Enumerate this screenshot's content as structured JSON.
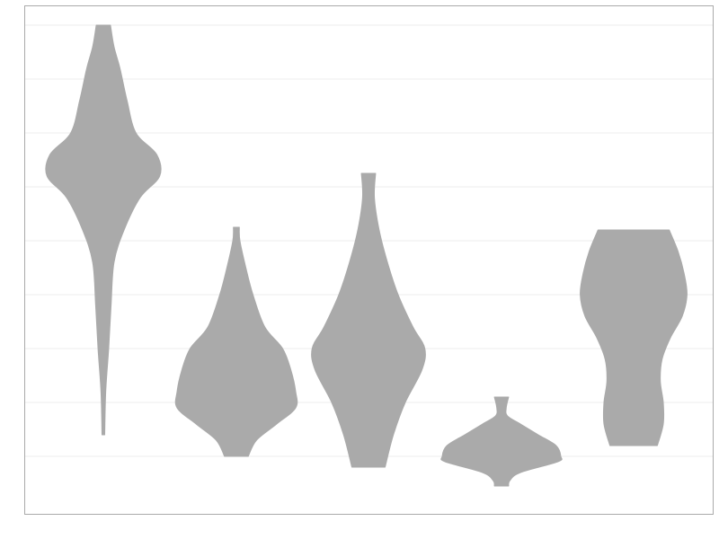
{
  "colors": {
    "background": "#ffffff",
    "violin_fill": "#aaaaaa",
    "gridline": "#eeeeee",
    "frame": "#aaaaaa"
  },
  "chart_data": {
    "type": "violin",
    "title": "",
    "xlabel": "",
    "ylabel": "",
    "grid": true,
    "ylim": [
      0,
      9.4
    ],
    "y_grid_values": [
      1,
      2,
      3,
      4,
      5,
      6,
      7,
      8,
      9
    ],
    "categories": [
      "",
      "",
      "",
      "",
      ""
    ],
    "series": [
      {
        "min": 1.4,
        "max": 9.0,
        "profile": [
          [
            1.4,
            0.0
          ],
          [
            2.2,
            0.04
          ],
          [
            3.0,
            0.09
          ],
          [
            3.8,
            0.13
          ],
          [
            4.6,
            0.18
          ],
          [
            5.2,
            0.35
          ],
          [
            5.8,
            0.62
          ],
          [
            6.2,
            0.95
          ],
          [
            6.6,
            0.9
          ],
          [
            7.0,
            0.55
          ],
          [
            7.6,
            0.4
          ],
          [
            8.2,
            0.28
          ],
          [
            8.6,
            0.18
          ],
          [
            9.0,
            0.12
          ]
        ]
      },
      {
        "min": 1.0,
        "max": 5.25,
        "profile": [
          [
            1.0,
            0.2
          ],
          [
            1.3,
            0.34
          ],
          [
            1.6,
            0.68
          ],
          [
            1.9,
            1.0
          ],
          [
            2.2,
            1.0
          ],
          [
            2.6,
            0.92
          ],
          [
            3.0,
            0.78
          ],
          [
            3.4,
            0.48
          ],
          [
            4.0,
            0.28
          ],
          [
            4.5,
            0.16
          ],
          [
            5.0,
            0.06
          ],
          [
            5.25,
            0.05
          ]
        ]
      },
      {
        "min": 0.8,
        "max": 6.25,
        "profile": [
          [
            0.8,
            0.28
          ],
          [
            1.4,
            0.42
          ],
          [
            2.0,
            0.62
          ],
          [
            2.6,
            0.9
          ],
          [
            3.0,
            0.95
          ],
          [
            3.4,
            0.75
          ],
          [
            4.0,
            0.5
          ],
          [
            4.6,
            0.32
          ],
          [
            5.2,
            0.18
          ],
          [
            5.8,
            0.1
          ],
          [
            6.25,
            0.12
          ]
        ]
      },
      {
        "min": 0.45,
        "max": 2.1,
        "profile": [
          [
            0.45,
            0.12
          ],
          [
            0.55,
            0.14
          ],
          [
            0.7,
            0.32
          ],
          [
            0.9,
            0.95
          ],
          [
            1.0,
            1.0
          ],
          [
            1.2,
            0.92
          ],
          [
            1.4,
            0.62
          ],
          [
            1.6,
            0.32
          ],
          [
            1.75,
            0.1
          ],
          [
            1.9,
            0.08
          ],
          [
            2.1,
            0.12
          ]
        ]
      },
      {
        "min": 1.2,
        "max": 5.2,
        "profile": [
          [
            1.2,
            0.4
          ],
          [
            1.6,
            0.5
          ],
          [
            2.0,
            0.5
          ],
          [
            2.4,
            0.45
          ],
          [
            2.8,
            0.48
          ],
          [
            3.2,
            0.62
          ],
          [
            3.6,
            0.82
          ],
          [
            4.0,
            0.9
          ],
          [
            4.4,
            0.85
          ],
          [
            4.8,
            0.75
          ],
          [
            5.2,
            0.6
          ]
        ]
      }
    ]
  }
}
